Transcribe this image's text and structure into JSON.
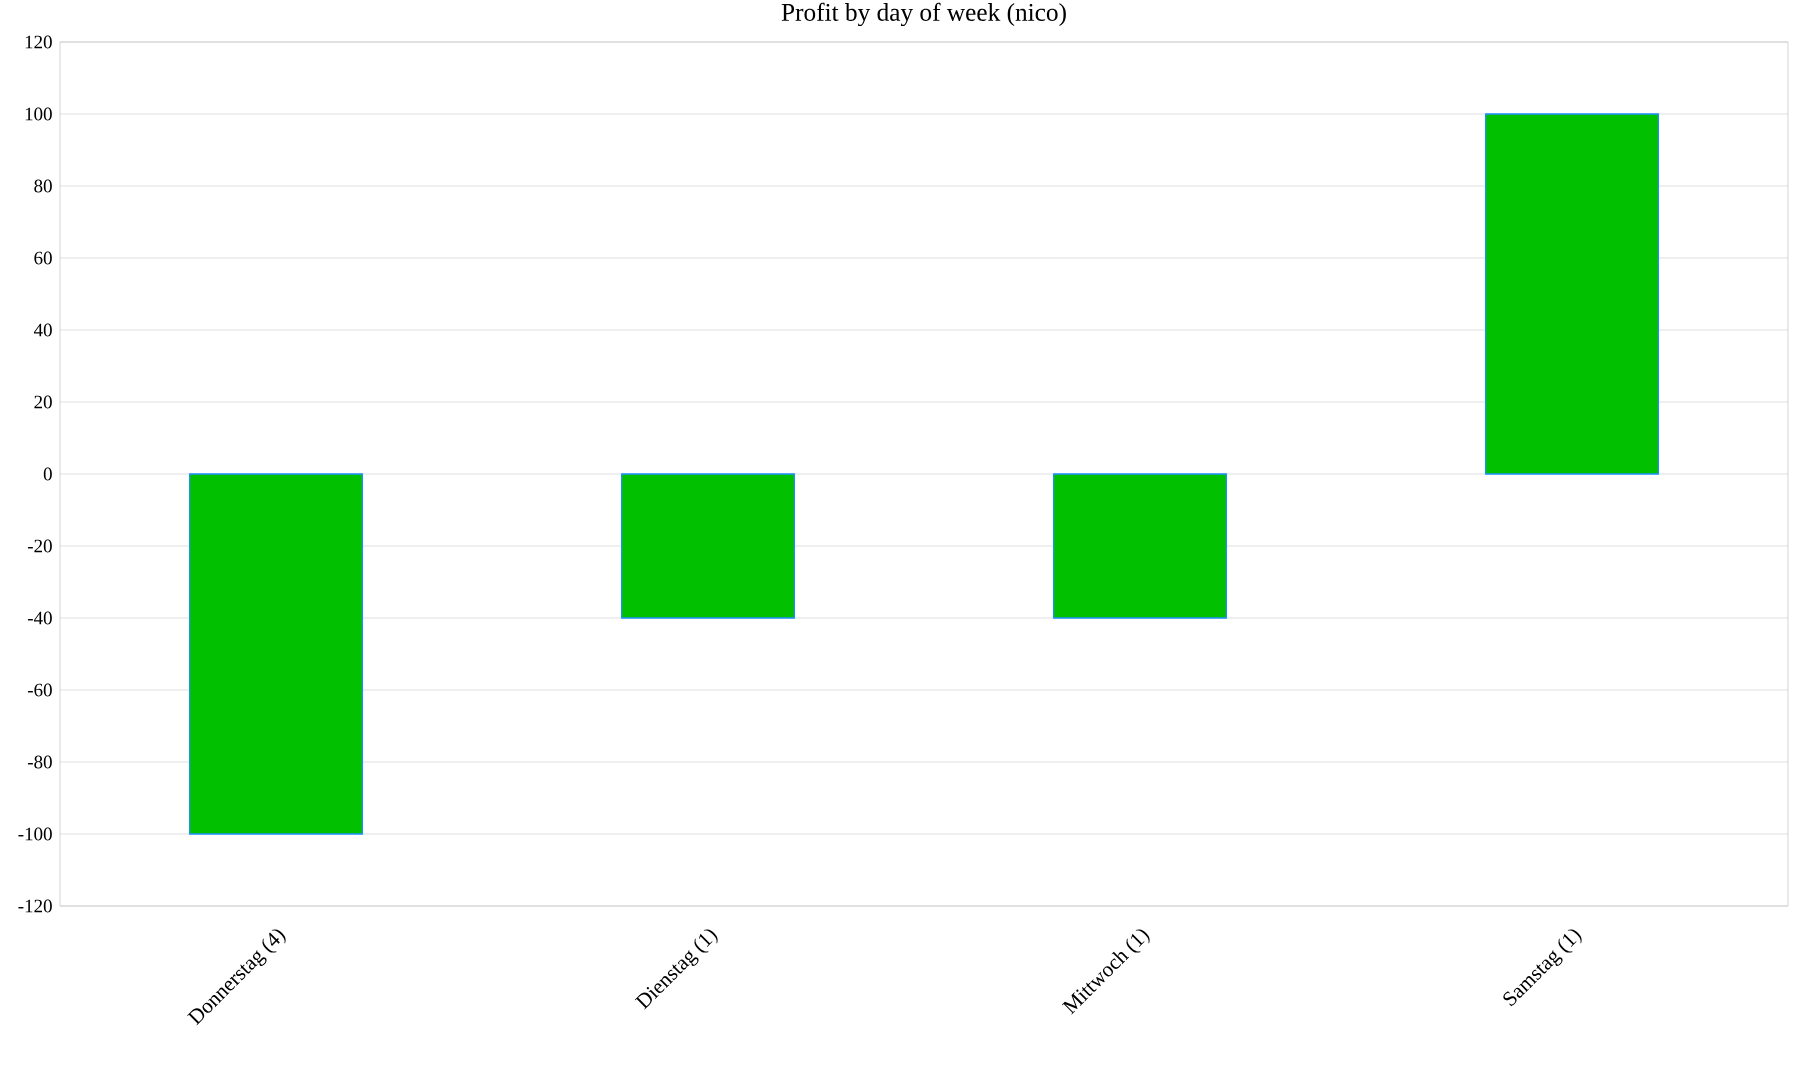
{
  "chart_data": {
    "type": "bar",
    "title": "Profit by day of week  (nico)",
    "categories": [
      "Donnerstag (4)",
      "Dienstag (1)",
      "Mittwoch (1)",
      "Samstag (1)"
    ],
    "values": [
      -100,
      -40,
      -40,
      100
    ],
    "color": "#00c000",
    "ylim": [
      -120,
      120
    ],
    "yticks": [
      -120,
      -100,
      -80,
      -60,
      -40,
      -20,
      0,
      20,
      40,
      60,
      80,
      100,
      120
    ],
    "grid": "y"
  }
}
